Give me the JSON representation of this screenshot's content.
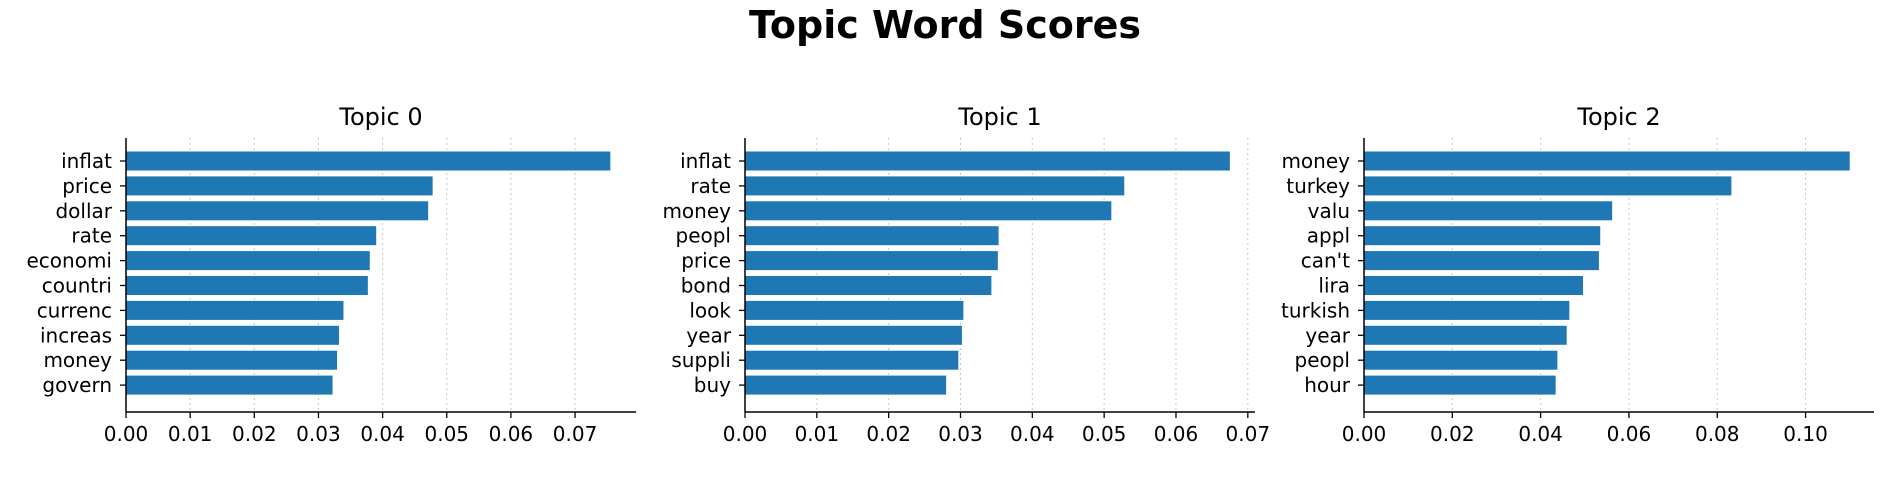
{
  "figure_title": "Topic Word Scores",
  "colors": {
    "bar": "#1f77b4",
    "axis": "#000000",
    "grid": "#b0b0b0"
  },
  "chart_data": [
    {
      "type": "bar",
      "orientation": "horizontal",
      "title": "Topic 0",
      "categories": [
        "inflat",
        "price",
        "dollar",
        "rate",
        "economi",
        "countri",
        "currenc",
        "increas",
        "money",
        "govern"
      ],
      "values": [
        0.0755,
        0.0478,
        0.0471,
        0.039,
        0.038,
        0.0377,
        0.0339,
        0.0332,
        0.0329,
        0.0322
      ],
      "xlim": [
        0,
        0.0795
      ],
      "xticks": [
        0.0,
        0.01,
        0.02,
        0.03,
        0.04,
        0.05,
        0.06,
        0.07
      ],
      "xtick_labels": [
        "0.00",
        "0.01",
        "0.02",
        "0.03",
        "0.04",
        "0.05",
        "0.06",
        "0.07"
      ],
      "grid": "x-dotted"
    },
    {
      "type": "bar",
      "orientation": "horizontal",
      "title": "Topic 1",
      "categories": [
        "inflat",
        "rate",
        "money",
        "peopl",
        "price",
        "bond",
        "look",
        "year",
        "suppli",
        "buy"
      ],
      "values": [
        0.0675,
        0.0528,
        0.051,
        0.0353,
        0.0352,
        0.0343,
        0.0304,
        0.0302,
        0.0297,
        0.028
      ],
      "xlim": [
        0,
        0.071
      ],
      "xticks": [
        0.0,
        0.01,
        0.02,
        0.03,
        0.04,
        0.05,
        0.06,
        0.07
      ],
      "xtick_labels": [
        "0.00",
        "0.01",
        "0.02",
        "0.03",
        "0.04",
        "0.05",
        "0.06",
        "0.07"
      ],
      "grid": "x-dotted"
    },
    {
      "type": "bar",
      "orientation": "horizontal",
      "title": "Topic 2",
      "categories": [
        "money",
        "turkey",
        "valu",
        "appl",
        "can't",
        "lira",
        "turkish",
        "year",
        "peopl",
        "hour"
      ],
      "values": [
        0.11,
        0.0832,
        0.0562,
        0.0535,
        0.0532,
        0.0496,
        0.0465,
        0.0459,
        0.0438,
        0.0434
      ],
      "xlim": [
        0,
        0.1155
      ],
      "xticks": [
        0.0,
        0.02,
        0.04,
        0.06,
        0.08,
        0.1
      ],
      "xtick_labels": [
        "0.00",
        "0.02",
        "0.04",
        "0.06",
        "0.08",
        "0.10"
      ],
      "grid": "x-dotted"
    }
  ]
}
